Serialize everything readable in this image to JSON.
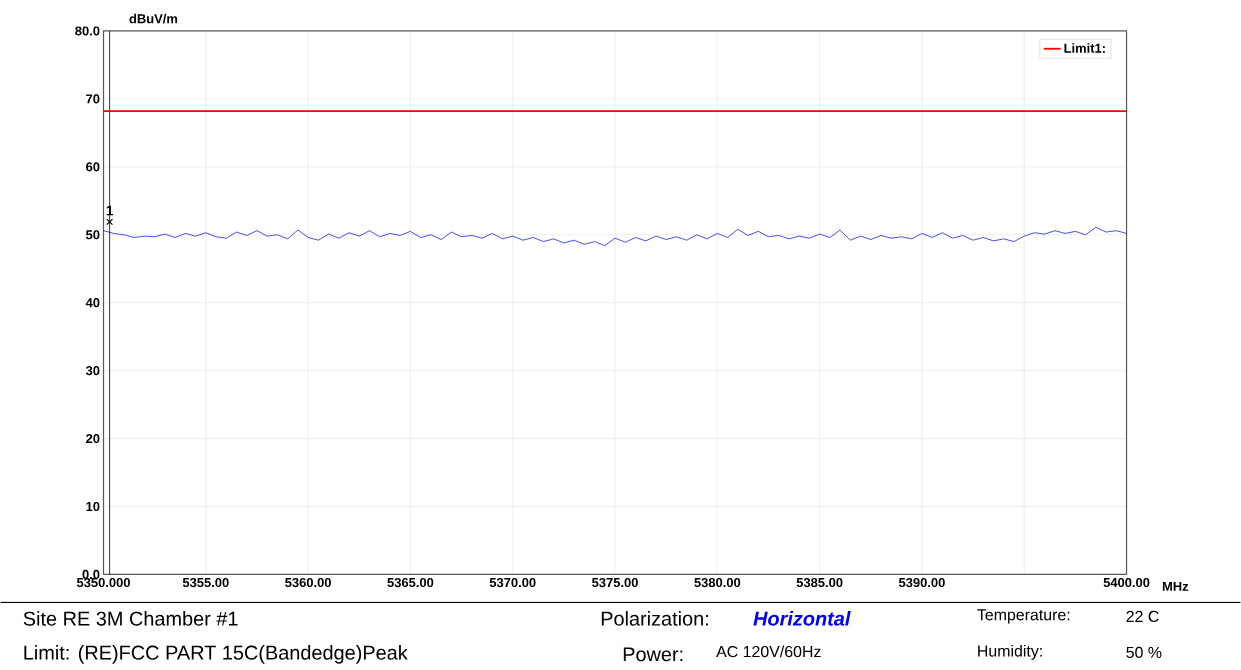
{
  "chart_data": {
    "type": "line",
    "ylabel": "dBuV/m",
    "xlabel": "MHz",
    "xlim": [
      5350,
      5400
    ],
    "ylim": [
      0,
      80
    ],
    "xticks": [
      {
        "value": 5350,
        "label": "5350.000"
      },
      {
        "value": 5355,
        "label": "5355.00"
      },
      {
        "value": 5360,
        "label": "5360.00"
      },
      {
        "value": 5365,
        "label": "5365.00"
      },
      {
        "value": 5370,
        "label": "5370.00"
      },
      {
        "value": 5375,
        "label": "5375.00"
      },
      {
        "value": 5380,
        "label": "5380.00"
      },
      {
        "value": 5385,
        "label": "5385.00"
      },
      {
        "value": 5390,
        "label": "5390.00"
      },
      {
        "value": 5395,
        "label": null
      },
      {
        "value": 5400,
        "label": "5400.00"
      }
    ],
    "yticks": [
      {
        "value": 0,
        "label": "0.0"
      },
      10,
      20,
      30,
      40,
      50,
      60,
      70,
      {
        "value": 80,
        "label": "80.0"
      }
    ],
    "grid": true,
    "legend": "top right",
    "line_style": "solid",
    "series": [
      {
        "color": "#0000ff",
        "x": [
          5350,
          5350.5,
          5351,
          5351.5,
          5352,
          5352.5,
          5353,
          5353.5,
          5354,
          5354.5,
          5355,
          5355.5,
          5356,
          5356.5,
          5357,
          5357.5,
          5358,
          5358.5,
          5359,
          5359.5,
          5360,
          5360.5,
          5361,
          5361.5,
          5362,
          5362.5,
          5363,
          5363.5,
          5364,
          5364.5,
          5365,
          5365.5,
          5366,
          5366.5,
          5367,
          5367.5,
          5368,
          5368.5,
          5369,
          5369.5,
          5370,
          5370.5,
          5371,
          5371.5,
          5372,
          5372.5,
          5373,
          5373.5,
          5374,
          5374.5,
          5375,
          5375.5,
          5376,
          5376.5,
          5377,
          5377.5,
          5378,
          5378.5,
          5379,
          5379.5,
          5380,
          5380.5,
          5381,
          5381.5,
          5382,
          5382.5,
          5383,
          5383.5,
          5384,
          5384.5,
          5385,
          5385.5,
          5386,
          5386.5,
          5387,
          5387.5,
          5388,
          5388.5,
          5389,
          5389.5,
          5390,
          5390.5,
          5391,
          5391.5,
          5392,
          5392.5,
          5393,
          5393.5,
          5394,
          5394.5,
          5395,
          5395.5,
          5396,
          5396.5,
          5397,
          5397.5,
          5398,
          5398.5,
          5399,
          5399.5,
          5400
        ],
        "values": [
          50.6,
          50.2,
          50.0,
          49.6,
          49.8,
          49.7,
          50.1,
          49.6,
          50.2,
          49.8,
          50.3,
          49.7,
          49.5,
          50.4,
          49.9,
          50.6,
          49.8,
          50.0,
          49.4,
          50.7,
          49.6,
          49.2,
          50.1,
          49.5,
          50.3,
          49.8,
          50.6,
          49.7,
          50.2,
          49.9,
          50.5,
          49.6,
          50.0,
          49.3,
          50.4,
          49.7,
          49.9,
          49.5,
          50.2,
          49.4,
          49.8,
          49.2,
          49.6,
          49.0,
          49.4,
          48.8,
          49.2,
          48.6,
          49.0,
          48.4,
          49.5,
          48.9,
          49.6,
          49.1,
          49.8,
          49.3,
          49.7,
          49.2,
          50.0,
          49.4,
          50.2,
          49.6,
          50.8,
          49.9,
          50.5,
          49.7,
          49.9,
          49.4,
          49.8,
          49.5,
          50.1,
          49.6,
          50.7,
          49.2,
          49.8,
          49.3,
          49.9,
          49.5,
          49.7,
          49.4,
          50.2,
          49.6,
          50.3,
          49.5,
          49.9,
          49.2,
          49.6,
          49.1,
          49.4,
          49.0,
          49.8,
          50.3,
          50.1,
          50.6,
          50.2,
          50.5,
          50.0,
          51.1,
          50.4,
          50.6,
          50.2
        ]
      },
      {
        "name": "Limit1:",
        "color": "#ff0000",
        "x": [
          5350,
          5400
        ],
        "values": [
          68.2,
          68.2
        ]
      },
      {
        "type": "scatter",
        "marker": "cross",
        "color": "#000000",
        "x": [
          5350.3
        ],
        "values": [
          51.9
        ]
      }
    ],
    "ref_lines": [
      {
        "axis": "x",
        "value": 5350.3,
        "color": "#333333"
      }
    ],
    "annotations": [
      {
        "text": "1",
        "x": 5350.3,
        "y": 51.9
      },
      "Site  RE 3M Chamber #1",
      "Limit: (RE)FCC PART 15C(Bandedge)Peak",
      "Polarization:",
      "Horizontal",
      "Temperature:",
      "22 C",
      "Power:",
      "AC 120V/60Hz",
      "Humidity:",
      "50 %"
    ]
  }
}
